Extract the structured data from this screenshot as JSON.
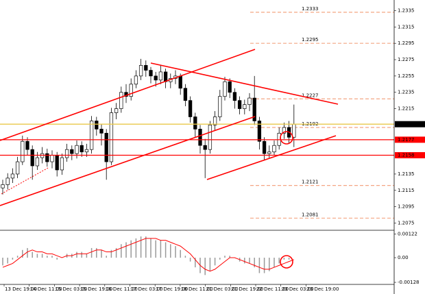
{
  "chart_data": {
    "type": "candlestick",
    "ylim": [
      1.2067,
      1.2348
    ],
    "yticks": [
      1.2335,
      1.2315,
      1.2295,
      1.2275,
      1.2255,
      1.2235,
      1.2215,
      1.2135,
      1.2115,
      1.2095,
      1.2075
    ],
    "price_lines": [
      {
        "value": 1.2196,
        "color": "#e8c84a",
        "label_color": "#000000"
      },
      {
        "value": 1.2177,
        "color": "#ff0000",
        "label_color": "#ff0000"
      },
      {
        "value": 1.2158,
        "color": "#ff0000",
        "label_color": "#ff0000"
      }
    ],
    "levels": [
      1.2333,
      1.2295,
      1.2227,
      1.2192,
      1.2121,
      1.2081
    ],
    "level_color": "#f4a582",
    "time_labels": [
      "13 Dec 19:00",
      "14 Dec 11:00",
      "15 Dec 03:00",
      "15 Dec 19:00",
      "16 Dec 11:00",
      "17 Dec 03:00",
      "17 Dec 19:00",
      "18 Dec 11:00",
      "21 Dec 03:00",
      "21 Dec 19:00",
      "22 Dec 11:00",
      "23 Dec 03:00",
      "23 Dec 19:00"
    ],
    "open": [
      1.2118,
      1.2122,
      1.213,
      1.2135,
      1.215,
      1.2175,
      1.2165,
      1.2145,
      1.2155,
      1.216,
      1.215,
      1.2158,
      1.214,
      1.2155,
      1.2165,
      1.216,
      1.217,
      1.2162,
      1.2165,
      1.22,
      1.219,
      1.2185,
      1.215,
      1.221,
      1.2215,
      1.2235,
      1.223,
      1.2245,
      1.2255,
      1.2268,
      1.2262,
      1.2255,
      1.225,
      1.226,
      1.2248,
      1.2252,
      1.2255,
      1.224,
      1.2225,
      1.2205,
      1.219,
      1.217,
      1.2165,
      1.2195,
      1.2205,
      1.223,
      1.2248,
      1.2235,
      1.2225,
      1.2215,
      1.222,
      1.2228,
      1.22,
      1.2175,
      1.216,
      1.2162,
      1.217,
      1.2185,
      1.2192,
      1.218
    ],
    "high": [
      1.2128,
      1.2136,
      1.2142,
      1.2156,
      1.2182,
      1.218,
      1.217,
      1.2162,
      1.2168,
      1.2166,
      1.2164,
      1.2162,
      1.216,
      1.2172,
      1.217,
      1.2176,
      1.2175,
      1.2172,
      1.2206,
      1.2205,
      1.2196,
      1.219,
      1.2216,
      1.2222,
      1.2242,
      1.2245,
      1.2252,
      1.2262,
      1.2276,
      1.2274,
      1.2266,
      1.226,
      1.2268,
      1.2264,
      1.2258,
      1.2262,
      1.2258,
      1.2245,
      1.223,
      1.221,
      1.2195,
      1.2178,
      1.22,
      1.2212,
      1.2238,
      1.2254,
      1.2252,
      1.224,
      1.223,
      1.2226,
      1.2234,
      1.2255,
      1.2205,
      1.218,
      1.217,
      1.2176,
      1.2192,
      1.2198,
      1.22,
      1.222
    ],
    "low": [
      1.211,
      1.2116,
      1.2124,
      1.213,
      1.2146,
      1.2158,
      1.2128,
      1.214,
      1.2148,
      1.2144,
      1.2142,
      1.2132,
      1.2134,
      1.215,
      1.2152,
      1.2154,
      1.2156,
      1.2156,
      1.216,
      1.2182,
      1.217,
      1.2128,
      1.2146,
      1.2202,
      1.221,
      1.2222,
      1.2225,
      1.224,
      1.225,
      1.2254,
      1.2246,
      1.2242,
      1.2245,
      1.224,
      1.224,
      1.2245,
      1.2232,
      1.2218,
      1.2198,
      1.218,
      1.216,
      1.213,
      1.216,
      1.2188,
      1.22,
      1.2225,
      1.2228,
      1.2215,
      1.2208,
      1.2208,
      1.2212,
      1.2195,
      1.2165,
      1.2152,
      1.2154,
      1.2158,
      1.2165,
      1.2178,
      1.2172,
      1.2168
    ],
    "close": [
      1.2122,
      1.213,
      1.2135,
      1.215,
      1.2175,
      1.2165,
      1.2145,
      1.2155,
      1.216,
      1.215,
      1.2158,
      1.214,
      1.2155,
      1.2165,
      1.216,
      1.217,
      1.2162,
      1.2165,
      1.22,
      1.219,
      1.2185,
      1.215,
      1.221,
      1.2215,
      1.2235,
      1.223,
      1.2245,
      1.2255,
      1.2268,
      1.2262,
      1.2255,
      1.225,
      1.226,
      1.2248,
      1.2252,
      1.2255,
      1.224,
      1.2225,
      1.2205,
      1.219,
      1.217,
      1.2165,
      1.2195,
      1.2205,
      1.223,
      1.2248,
      1.2235,
      1.2225,
      1.2215,
      1.222,
      1.2228,
      1.22,
      1.2175,
      1.216,
      1.2162,
      1.217,
      1.2185,
      1.2192,
      1.218,
      1.2196
    ],
    "macd": {
      "ylim": [
        -0.00135,
        0.00135
      ],
      "yticks": [
        0.00122,
        {
          "value": 0,
          "label": "0.00"
        },
        -0.00128
      ],
      "histogram_color": "#999999",
      "signal_color": "#ff0000",
      "histogram": [
        -0.0004,
        -0.0003,
        -0.0001,
        0.0001,
        0.0004,
        0.0005,
        0.0003,
        0.0002,
        0.0002,
        0.0001,
        0.0001,
        -0.0001,
        0.0,
        0.0002,
        0.0002,
        0.0003,
        0.0003,
        0.0002,
        0.0005,
        0.0005,
        0.0004,
        0.0001,
        0.0004,
        0.0005,
        0.0007,
        0.0008,
        0.0009,
        0.001,
        0.0011,
        0.0011,
        0.001,
        0.0009,
        0.0009,
        0.0008,
        0.0007,
        0.0006,
        0.0004,
        0.0001,
        -0.0002,
        -0.0005,
        -0.0008,
        -0.0009,
        -0.0007,
        -0.0004,
        -0.0001,
        0.0001,
        0.0001,
        0.0,
        -0.0002,
        -0.0003,
        -0.0003,
        -0.0005,
        -0.0008,
        -0.0008,
        -0.0007,
        -0.0005,
        -0.0003,
        -0.0001,
        -0.0001,
        0.0
      ],
      "signal": [
        -0.0005,
        -0.0004,
        -0.0003,
        -0.0001,
        0.0001,
        0.0003,
        0.0004,
        0.0003,
        0.0003,
        0.0002,
        0.0002,
        0.0001,
        0.0,
        0.0001,
        0.0001,
        0.0002,
        0.0002,
        0.0002,
        0.0003,
        0.0004,
        0.0004,
        0.0003,
        0.0003,
        0.0004,
        0.0005,
        0.0006,
        0.0007,
        0.0008,
        0.0009,
        0.001,
        0.001,
        0.001,
        0.0009,
        0.0009,
        0.0008,
        0.0007,
        0.0006,
        0.0004,
        0.0002,
        -0.0001,
        -0.0004,
        -0.0006,
        -0.0007,
        -0.0006,
        -0.0004,
        -0.0002,
        0.0,
        0.0,
        -0.0001,
        -0.0002,
        -0.0003,
        -0.0004,
        -0.0005,
        -0.0006,
        -0.0006,
        -0.0005,
        -0.0004,
        -0.0003,
        -0.0002,
        -0.0001
      ]
    }
  }
}
